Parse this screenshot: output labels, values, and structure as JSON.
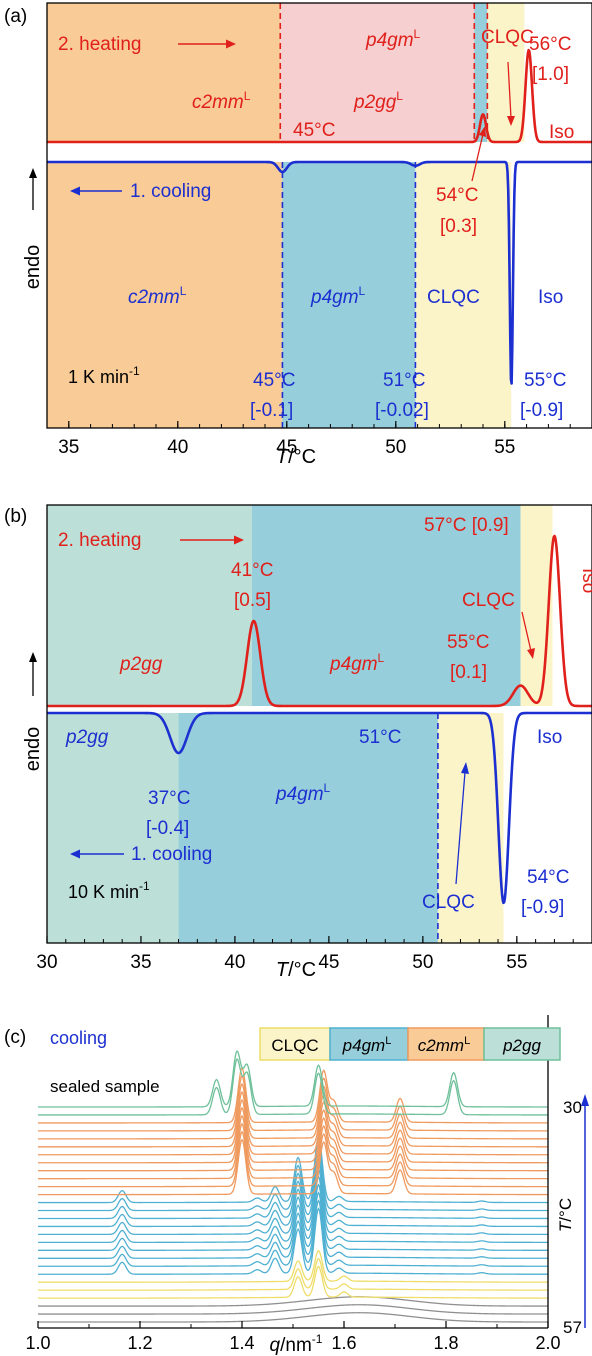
{
  "colors": {
    "heating": "#e0201b",
    "cooling": "#1c2fd0",
    "c2mm": "#f9cb96",
    "p2gg_a": "#f6cfd0",
    "p4gm": "#96cfdb",
    "clqc": "#fcf4c9",
    "p2gg_b": "#bcdfd7",
    "wide_green": "#6fc09a",
    "wide_orange": "#ef9a5f",
    "wide_blue": "#4fb0d2",
    "wide_yellow": "#eedd6a",
    "wide_gray": "#909090"
  },
  "chart_data": [
    {
      "panel": "(a)",
      "type": "line",
      "xlabel": "T/°C",
      "ylabel": "endo",
      "xlim": [
        34,
        59
      ],
      "xticks": [
        "35",
        "40",
        "45",
        "50",
        "55"
      ],
      "rate": "1 K min",
      "rate_exp": "-1",
      "heating_label": "2. heating",
      "cooling_label": "1. cooling",
      "heating_phases": [
        {
          "name": "c2mm",
          "sup": "L",
          "x": [
            34,
            44.7
          ]
        },
        {
          "name": "p2gg",
          "sup": "L",
          "x": [
            44.7,
            53.6
          ]
        },
        {
          "name": "p4gm",
          "sup": "L",
          "x": [
            53.6,
            54.2
          ]
        },
        {
          "name": "CLQC",
          "sup": "",
          "x": [
            54.2,
            55.9
          ]
        },
        {
          "name": "Iso",
          "sup": "",
          "x": [
            55.9,
            59
          ]
        }
      ],
      "cooling_phases": [
        {
          "name": "c2mm",
          "sup": "L",
          "x": [
            34,
            44.8
          ]
        },
        {
          "name": "p4gm",
          "sup": "L",
          "x": [
            44.8,
            50.9
          ]
        },
        {
          "name": "CLQC",
          "sup": "",
          "x": [
            50.9,
            55.3
          ]
        },
        {
          "name": "Iso",
          "sup": "",
          "x": [
            55.3,
            59
          ]
        }
      ],
      "heating_peaks": [
        {
          "T": 45,
          "height": 0.0,
          "width": 0.4
        },
        {
          "T": 54,
          "height": 0.3,
          "width": 0.14
        },
        {
          "T": 56.1,
          "height": 1.0,
          "width": 0.15
        }
      ],
      "cooling_peaks": [
        {
          "T": 44.8,
          "height": -0.04,
          "width": 0.2
        },
        {
          "T": 50.9,
          "height": -0.015,
          "width": 0.2
        },
        {
          "T": 55.3,
          "height": -0.9,
          "width": 0.07
        }
      ],
      "heating_annotations": [
        {
          "text": "45°C",
          "sub": ""
        },
        {
          "text": "54°C",
          "sub": "[0.3]"
        },
        {
          "text": "56°C",
          "sub": "[1.0]"
        }
      ],
      "cooling_annotations": [
        {
          "text": "45°C",
          "sub": "[-0.1]"
        },
        {
          "text": "51°C",
          "sub": "[-0.02]"
        },
        {
          "text": "55°C",
          "sub": "[-0.9]"
        }
      ]
    },
    {
      "panel": "(b)",
      "type": "line",
      "xlabel": "T/°C",
      "ylabel": "endo",
      "xlim": [
        30,
        59
      ],
      "xticks": [
        "30",
        "35",
        "40",
        "45",
        "50",
        "55"
      ],
      "rate": "10 K min",
      "rate_exp": "-1",
      "heating_label": "2. heating",
      "cooling_label": "1. cooling",
      "heating_phases": [
        {
          "name": "p2gg",
          "sup": "",
          "x": [
            30,
            40.9
          ]
        },
        {
          "name": "p4gm",
          "sup": "L",
          "x": [
            40.9,
            55.2
          ]
        },
        {
          "name": "CLQC",
          "sup": "",
          "x": [
            55.2,
            56.9
          ]
        },
        {
          "name": "Iso",
          "sup": "",
          "x": [
            56.9,
            59
          ]
        }
      ],
      "cooling_phases": [
        {
          "name": "p2gg",
          "sup": "",
          "x": [
            30,
            37
          ]
        },
        {
          "name": "p4gm",
          "sup": "L",
          "x": [
            37,
            50.8
          ]
        },
        {
          "name": "CLQC",
          "sup": "",
          "x": [
            50.8,
            54.3
          ]
        },
        {
          "name": "Iso",
          "sup": "",
          "x": [
            54.3,
            59
          ]
        }
      ],
      "heating_peaks": [
        {
          "T": 41,
          "height": 0.5,
          "width": 0.35
        },
        {
          "T": 55.2,
          "height": 0.12,
          "width": 0.4
        },
        {
          "T": 57,
          "height": 1.0,
          "width": 0.3
        }
      ],
      "cooling_peaks": [
        {
          "T": 37,
          "height": -0.2,
          "width": 0.45
        },
        {
          "T": 54.3,
          "height": -0.95,
          "width": 0.28
        }
      ],
      "heating_annotations": [
        {
          "text": "41°C",
          "sub": "[0.5]"
        },
        {
          "text": "55°C",
          "sub": "[0.1]"
        },
        {
          "text": "57°C [0.9]",
          "sub": ""
        }
      ],
      "cooling_annotations": [
        {
          "text": "37°C",
          "sub": "[-0.4]"
        },
        {
          "text": "51°C",
          "sub": ""
        },
        {
          "text": "54°C",
          "sub": "[-0.9]"
        }
      ]
    },
    {
      "panel": "(c)",
      "type": "line",
      "xlabel": "q/nm",
      "xlabel_exp": "-1",
      "ylabel": "T/°C",
      "xlim": [
        1.0,
        2.0
      ],
      "xticks": [
        "1.0",
        "1.2",
        "1.4",
        "1.6",
        "1.8",
        "2.0"
      ],
      "mode_label": "cooling",
      "sample_label": "sealed sample",
      "temp_top": "30",
      "temp_bottom": "57",
      "legend": [
        {
          "name": "CLQC",
          "sup": ""
        },
        {
          "name": "p4gm",
          "sup": "L"
        },
        {
          "name": "c2mm",
          "sup": "L"
        },
        {
          "name": "p2gg",
          "sup": ""
        }
      ],
      "series_groups": [
        {
          "phase": "p2gg",
          "count": 2,
          "peaks": [
            [
              1.35,
              0.8
            ],
            [
              1.39,
              1.6
            ],
            [
              1.41,
              1.2
            ],
            [
              1.55,
              1.2
            ],
            [
              1.815,
              1.0
            ]
          ]
        },
        {
          "phase": "c2mm",
          "count": 10,
          "peaks": [
            [
              1.4,
              1.6
            ],
            [
              1.56,
              1.5
            ],
            [
              1.58,
              0.6
            ],
            [
              1.71,
              0.7
            ]
          ]
        },
        {
          "phase": "p4gm",
          "count": 10,
          "peaks": [
            [
              1.165,
              0.35
            ],
            [
              1.43,
              0.12
            ],
            [
              1.465,
              0.45
            ],
            [
              1.51,
              1.3
            ],
            [
              1.55,
              1.9
            ],
            [
              1.59,
              0.15
            ],
            [
              1.87,
              0.04
            ]
          ]
        },
        {
          "phase": "CLQC",
          "count": 3,
          "peaks": [
            [
              1.51,
              0.6
            ],
            [
              1.55,
              0.9
            ],
            [
              1.6,
              0.15
            ]
          ]
        },
        {
          "phase": "Iso",
          "count": 3,
          "peaks": [
            [
              1.58,
              0.12
            ],
            [
              1.66,
              0.18
            ]
          ]
        }
      ]
    }
  ]
}
